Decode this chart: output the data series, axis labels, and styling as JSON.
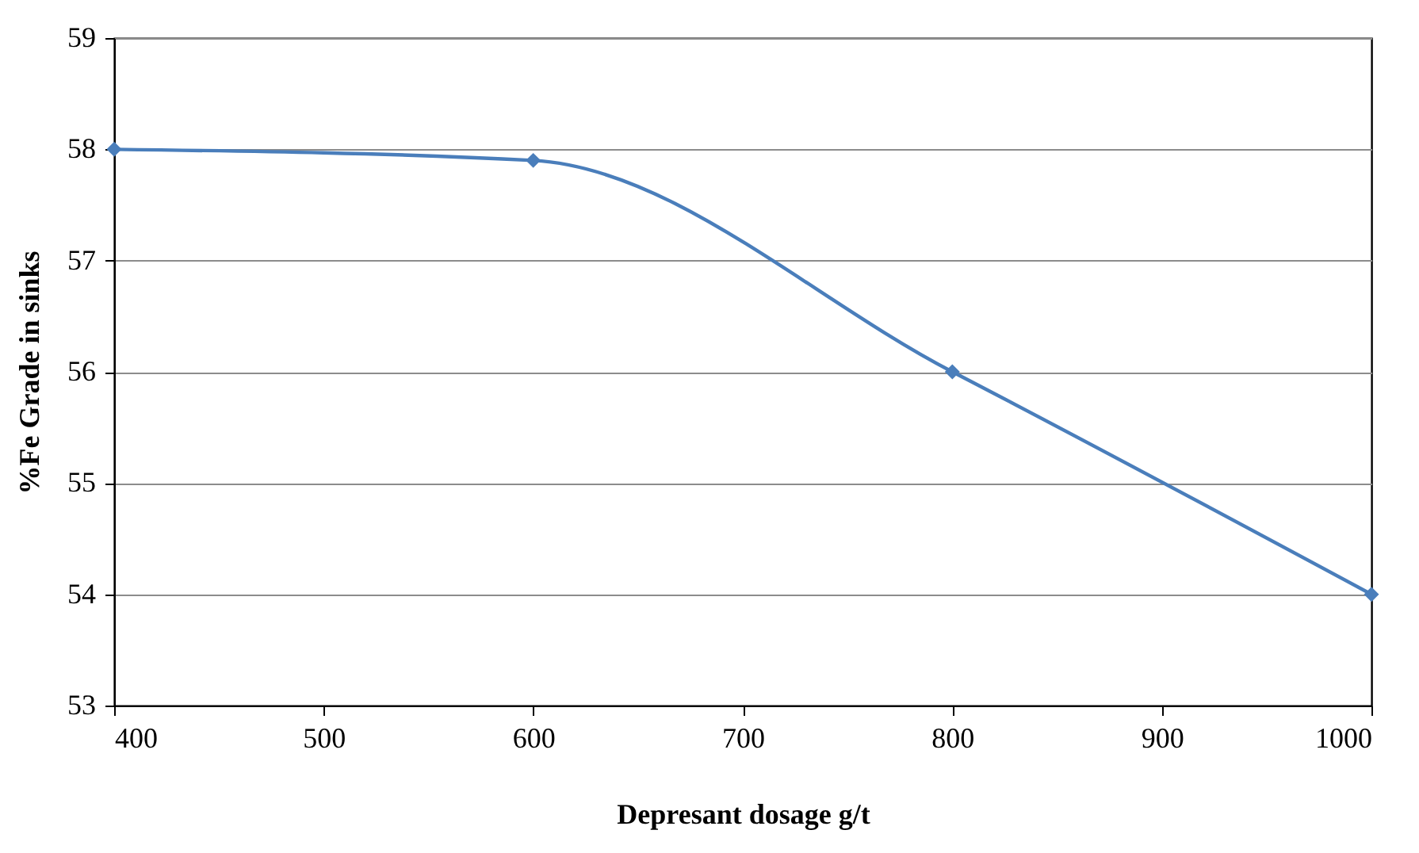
{
  "chart_data": {
    "type": "line",
    "xlabel": "Depresant dosage g/t",
    "ylabel": "%Fe Grade in sinks",
    "x": [
      400,
      600,
      800,
      1000
    ],
    "series": [
      {
        "color": "#4a7ebb",
        "values": [
          58,
          57.9,
          56,
          54
        ]
      }
    ],
    "xlim": [
      400,
      1000
    ],
    "xticks": [
      400,
      500,
      600,
      700,
      800,
      900,
      1000
    ],
    "ylim": [
      53,
      59
    ],
    "yticks": [
      53,
      54,
      55,
      56,
      57,
      58,
      59
    ],
    "grid": "y",
    "marker": "diamond",
    "line_style": "solid"
  }
}
